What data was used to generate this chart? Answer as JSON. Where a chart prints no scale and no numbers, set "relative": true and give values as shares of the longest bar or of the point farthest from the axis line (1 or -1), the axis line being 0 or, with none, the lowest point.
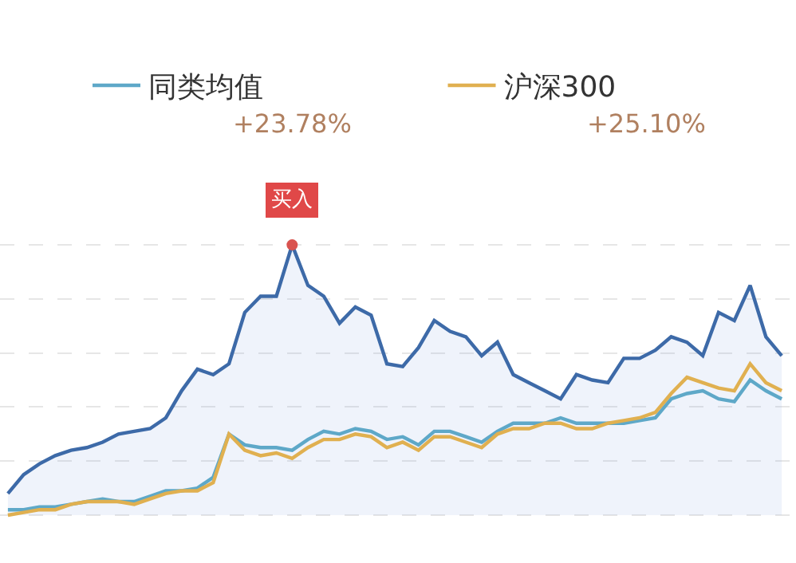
{
  "chart_data": {
    "type": "line",
    "relative": true,
    "categories": [
      null,
      null,
      null,
      null,
      null,
      null,
      null,
      null,
      null,
      null,
      null,
      null,
      null,
      null,
      null,
      null,
      null,
      null,
      null,
      null,
      null,
      null,
      null,
      null,
      null,
      null,
      null,
      null,
      null,
      null,
      null,
      null,
      null,
      null,
      null,
      null,
      null,
      null,
      null,
      null,
      null,
      null,
      null,
      null,
      null,
      null,
      null,
      null,
      null,
      null
    ],
    "series": [
      {
        "type": "area",
        "color": "#3d6aa8",
        "values": [
          0.08,
          0.15,
          0.19,
          0.22,
          0.24,
          0.25,
          0.27,
          0.3,
          0.31,
          0.32,
          0.36,
          0.46,
          0.54,
          0.52,
          0.56,
          0.75,
          0.81,
          0.81,
          1,
          0.85,
          0.81,
          0.71,
          0.77,
          0.74,
          0.56,
          0.55,
          0.62,
          0.72,
          0.68,
          0.66,
          0.59,
          0.64,
          0.52,
          0.49,
          0.46,
          0.43,
          0.52,
          0.5,
          0.49,
          0.58,
          0.58,
          0.61,
          0.66,
          0.64,
          0.59,
          0.75,
          0.72,
          0.85,
          0.66,
          0.59
        ]
      },
      {
        "name": "同类均值",
        "color": "#5ea8c8",
        "values": [
          0.02,
          0.02,
          0.03,
          0.03,
          0.04,
          0.05,
          0.06,
          0.05,
          0.05,
          0.07,
          0.09,
          0.09,
          0.1,
          0.14,
          0.3,
          0.26,
          0.25,
          0.25,
          0.24,
          0.28,
          0.31,
          0.3,
          0.32,
          0.31,
          0.28,
          0.29,
          0.26,
          0.31,
          0.31,
          0.29,
          0.27,
          0.31,
          0.34,
          0.34,
          0.34,
          0.36,
          0.34,
          0.34,
          0.34,
          0.34,
          0.35,
          0.36,
          0.43,
          0.45,
          0.46,
          0.43,
          0.42,
          0.5,
          0.46,
          0.43
        ]
      },
      {
        "name": "沪深300",
        "color": "#e0b050",
        "values": [
          0,
          0.01,
          0.02,
          0.02,
          0.04,
          0.05,
          0.05,
          0.05,
          0.04,
          0.06,
          0.08,
          0.09,
          0.09,
          0.12,
          0.3,
          0.24,
          0.22,
          0.23,
          0.21,
          0.25,
          0.28,
          0.28,
          0.3,
          0.29,
          0.25,
          0.27,
          0.24,
          0.29,
          0.29,
          0.27,
          0.25,
          0.3,
          0.32,
          0.32,
          0.34,
          0.34,
          0.32,
          0.32,
          0.34,
          0.35,
          0.36,
          0.38,
          0.45,
          0.51,
          0.49,
          0.47,
          0.46,
          0.56,
          0.49,
          0.46
        ]
      }
    ],
    "annotations": [
      "+23.78%",
      "+25.10%",
      {
        "text": "买入",
        "y": 1
      }
    ],
    "legend": "top",
    "grid": "y",
    "marker": "none"
  }
}
